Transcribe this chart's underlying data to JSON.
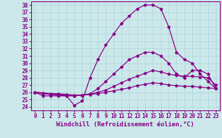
{
  "xlabel": "Windchill (Refroidissement éolien,°C)",
  "bg_color": "#cce8ea",
  "grid_color": "#b0d8da",
  "line_color": "#880088",
  "xlim": [
    -0.5,
    23.5
  ],
  "ylim": [
    23.5,
    38.5
  ],
  "xticks": [
    0,
    1,
    2,
    3,
    4,
    5,
    6,
    7,
    8,
    9,
    10,
    11,
    12,
    13,
    14,
    15,
    16,
    17,
    18,
    19,
    20,
    21,
    22,
    23
  ],
  "yticks": [
    24,
    25,
    26,
    27,
    28,
    29,
    30,
    31,
    32,
    33,
    34,
    35,
    36,
    37,
    38
  ],
  "curves": [
    {
      "x": [
        0,
        1,
        2,
        3,
        4,
        5,
        6,
        7,
        8,
        9,
        10,
        11,
        12,
        13,
        14,
        15,
        16,
        17,
        18,
        19,
        20,
        21,
        22,
        23
      ],
      "y": [
        26.0,
        25.5,
        25.5,
        25.5,
        25.5,
        24.2,
        24.8,
        28.0,
        30.5,
        32.5,
        34.0,
        35.5,
        36.5,
        37.5,
        38.0,
        38.0,
        37.5,
        35.0,
        31.5,
        30.5,
        30.0,
        28.5,
        27.5,
        26.5
      ]
    },
    {
      "x": [
        0,
        1,
        2,
        3,
        4,
        5,
        6,
        7,
        8,
        9,
        10,
        11,
        12,
        13,
        14,
        15,
        16,
        17,
        18,
        19,
        20,
        21,
        22,
        23
      ],
      "y": [
        26.0,
        25.8,
        25.7,
        25.6,
        25.5,
        25.5,
        25.6,
        25.8,
        26.5,
        27.5,
        28.5,
        29.5,
        30.5,
        31.0,
        31.5,
        31.5,
        31.0,
        30.0,
        28.5,
        28.0,
        29.0,
        29.0,
        28.5,
        26.5
      ]
    },
    {
      "x": [
        0,
        1,
        2,
        3,
        4,
        5,
        6,
        7,
        8,
        9,
        10,
        11,
        12,
        13,
        14,
        15,
        16,
        17,
        18,
        19,
        20,
        21,
        22,
        23
      ],
      "y": [
        26.0,
        25.9,
        25.8,
        25.7,
        25.6,
        25.5,
        25.6,
        25.7,
        26.0,
        26.3,
        26.8,
        27.3,
        27.8,
        28.2,
        28.6,
        29.0,
        28.8,
        28.5,
        28.3,
        28.2,
        28.2,
        28.1,
        28.0,
        27.0
      ]
    },
    {
      "x": [
        0,
        1,
        2,
        3,
        4,
        5,
        6,
        7,
        8,
        9,
        10,
        11,
        12,
        13,
        14,
        15,
        16,
        17,
        18,
        19,
        20,
        21,
        22,
        23
      ],
      "y": [
        26.0,
        25.9,
        25.8,
        25.8,
        25.7,
        25.6,
        25.6,
        25.7,
        25.8,
        26.0,
        26.2,
        26.4,
        26.6,
        26.9,
        27.1,
        27.3,
        27.2,
        27.0,
        26.9,
        26.8,
        26.8,
        26.7,
        26.6,
        26.5
      ]
    }
  ],
  "marker": "*",
  "markersize": 3,
  "linewidth": 0.9,
  "font_family": "monospace",
  "tick_fontsize": 5.5,
  "label_fontsize": 6.5
}
